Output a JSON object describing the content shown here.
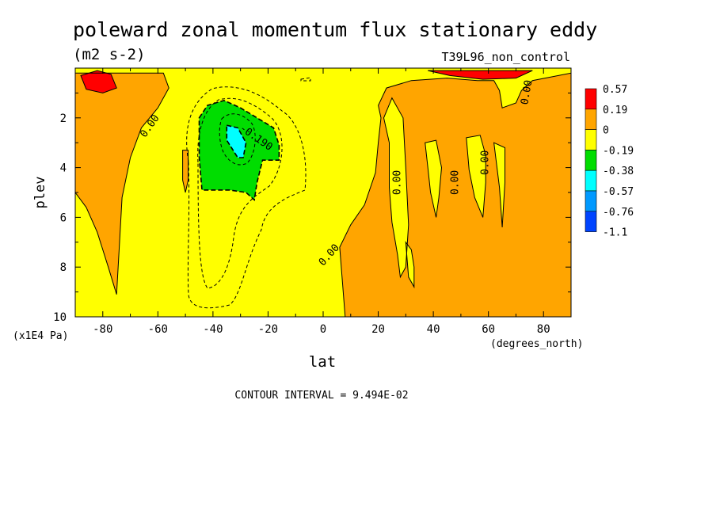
{
  "chart_data": {
    "type": "heatmap",
    "title": "poleward zonal momentum flux stationary eddy",
    "subtitle": "(m2 s-2)",
    "run_label": "T39L96_non_control",
    "xlabel": "lat",
    "x_units": "(degrees_north)",
    "ylabel": "plev",
    "y_units": "(x1E4 Pa)",
    "xlim": [
      -90,
      90
    ],
    "ylim": [
      10,
      0
    ],
    "x_ticks": [
      "-80",
      "-60",
      "-40",
      "-20",
      "0",
      "20",
      "40",
      "60",
      "80"
    ],
    "x_tick_values": [
      -80,
      -60,
      -40,
      -20,
      0,
      20,
      40,
      60,
      80
    ],
    "y_ticks": [
      "2",
      "4",
      "6",
      "8",
      "10"
    ],
    "y_tick_values": [
      2,
      4,
      6,
      8,
      10
    ],
    "footer": "CONTOUR INTERVAL = 9.494E-02",
    "contour_labels": [
      "0.00",
      "-0.190",
      "0.00",
      "0.00",
      "0.00",
      "0.00",
      "0.00"
    ],
    "legend": {
      "placement": "right",
      "labels": [
        "0.57",
        "0.19",
        "0",
        "-0.19",
        "-0.38",
        "-0.57",
        "-0.76",
        "-1.1"
      ],
      "colors": [
        "#ff0000",
        "#ffa500",
        "#ffff00",
        "#00dd00",
        "#00ffff",
        "#0099ff",
        "#0044ff"
      ]
    },
    "regions": [
      {
        "level": "0.19 to 0.57",
        "color": "#ffa500",
        "polygon": [
          [
            -90,
            0.2
          ],
          [
            -58,
            0.2
          ],
          [
            -56,
            0.8
          ],
          [
            -60,
            1.6
          ],
          [
            -66,
            2.4
          ],
          [
            -70,
            3.6
          ],
          [
            -73,
            5.2
          ],
          [
            -74,
            7.2
          ],
          [
            -75,
            9.1
          ],
          [
            -78,
            8.0
          ],
          [
            -82,
            6.6
          ],
          [
            -86,
            5.6
          ],
          [
            -90,
            5.0
          ]
        ]
      },
      {
        "level": "0.19 to 0.57",
        "color": "#ffa500",
        "polygon": [
          [
            -51,
            3.3
          ],
          [
            -49,
            3.3
          ],
          [
            -49,
            4.5
          ],
          [
            -50,
            5.0
          ],
          [
            -51,
            4.5
          ]
        ]
      },
      {
        "level": "0.19 to 0.57",
        "color": "#ffa500",
        "polygon": [
          [
            20,
            1.5
          ],
          [
            23,
            0.8
          ],
          [
            32,
            0.5
          ],
          [
            45,
            0.4
          ],
          [
            56,
            0.5
          ],
          [
            62,
            0.5
          ],
          [
            64,
            0.9
          ],
          [
            65,
            1.6
          ],
          [
            70,
            1.4
          ],
          [
            72,
            0.9
          ],
          [
            76,
            0.5
          ],
          [
            90,
            0.2
          ],
          [
            90,
            10
          ],
          [
            8,
            10
          ],
          [
            6,
            7.2
          ],
          [
            10,
            6.3
          ],
          [
            15,
            5.5
          ],
          [
            19,
            4.2
          ],
          [
            20,
            3.0
          ],
          [
            21,
            2.0
          ]
        ]
      },
      {
        "level": "0.57 and above",
        "color": "#ff0000",
        "polygon": [
          [
            -88,
            0.3
          ],
          [
            -82,
            0.1
          ],
          [
            -77,
            0.25
          ],
          [
            -75,
            0.8
          ],
          [
            -80,
            1.0
          ],
          [
            -86,
            0.85
          ]
        ]
      },
      {
        "level": "0.57 and above",
        "color": "#ff0000",
        "polygon": [
          [
            38,
            0.1
          ],
          [
            76,
            0.1
          ],
          [
            70,
            0.4
          ],
          [
            58,
            0.45
          ],
          [
            46,
            0.3
          ]
        ]
      },
      {
        "level": "0 to -0.19",
        "color": "#ffff00",
        "polygon": [
          [
            22,
            2.0
          ],
          [
            24,
            3.0
          ],
          [
            24,
            4.8
          ],
          [
            25,
            6.2
          ],
          [
            27,
            7.5
          ],
          [
            28,
            8.4
          ],
          [
            30,
            8.0
          ],
          [
            31,
            6.3
          ],
          [
            30,
            4.0
          ],
          [
            29,
            2.0
          ],
          [
            25,
            1.2
          ]
        ]
      },
      {
        "level": "0 to -0.19",
        "color": "#ffff00",
        "polygon": [
          [
            37,
            3.0
          ],
          [
            41,
            2.9
          ],
          [
            43,
            4.0
          ],
          [
            42,
            5.2
          ],
          [
            41,
            6.0
          ],
          [
            39,
            5.0
          ],
          [
            38,
            4.0
          ]
        ]
      },
      {
        "level": "0 to -0.19",
        "color": "#ffff00",
        "polygon": [
          [
            52,
            2.8
          ],
          [
            57,
            2.7
          ],
          [
            59,
            3.5
          ],
          [
            59,
            4.6
          ],
          [
            58,
            6.0
          ],
          [
            55,
            5.2
          ],
          [
            53,
            4.1
          ]
        ]
      },
      {
        "level": "0 to -0.19",
        "color": "#ffff00",
        "polygon": [
          [
            62,
            3.0
          ],
          [
            66,
            3.2
          ],
          [
            66,
            4.6
          ],
          [
            65,
            6.4
          ],
          [
            64,
            4.8
          ]
        ]
      },
      {
        "level": "0 to -0.19",
        "color": "#ffff00",
        "polygon": [
          [
            30,
            7.0
          ],
          [
            32,
            7.3
          ],
          [
            33,
            8.0
          ],
          [
            33,
            8.8
          ],
          [
            31,
            8.4
          ]
        ]
      },
      {
        "level": "-0.19 to -0.38",
        "color": "#00dd00",
        "polygon": [
          [
            -45,
            2.0
          ],
          [
            -42,
            1.5
          ],
          [
            -36,
            1.3
          ],
          [
            -30,
            1.6
          ],
          [
            -24,
            2.0
          ],
          [
            -18,
            2.4
          ],
          [
            -16,
            3.1
          ],
          [
            -16,
            3.7
          ],
          [
            -22,
            3.7
          ],
          [
            -24,
            4.6
          ],
          [
            -25,
            5.3
          ],
          [
            -28,
            5.0
          ],
          [
            -34,
            4.9
          ],
          [
            -40,
            4.9
          ],
          [
            -44,
            4.9
          ],
          [
            -45,
            3.6
          ]
        ]
      },
      {
        "level": "-0.38 to -0.57",
        "color": "#00ffff",
        "polygon": [
          [
            -35,
            2.3
          ],
          [
            -31,
            2.4
          ],
          [
            -28,
            3.0
          ],
          [
            -29,
            3.6
          ],
          [
            -31,
            3.6
          ],
          [
            -35,
            2.9
          ]
        ]
      }
    ]
  }
}
